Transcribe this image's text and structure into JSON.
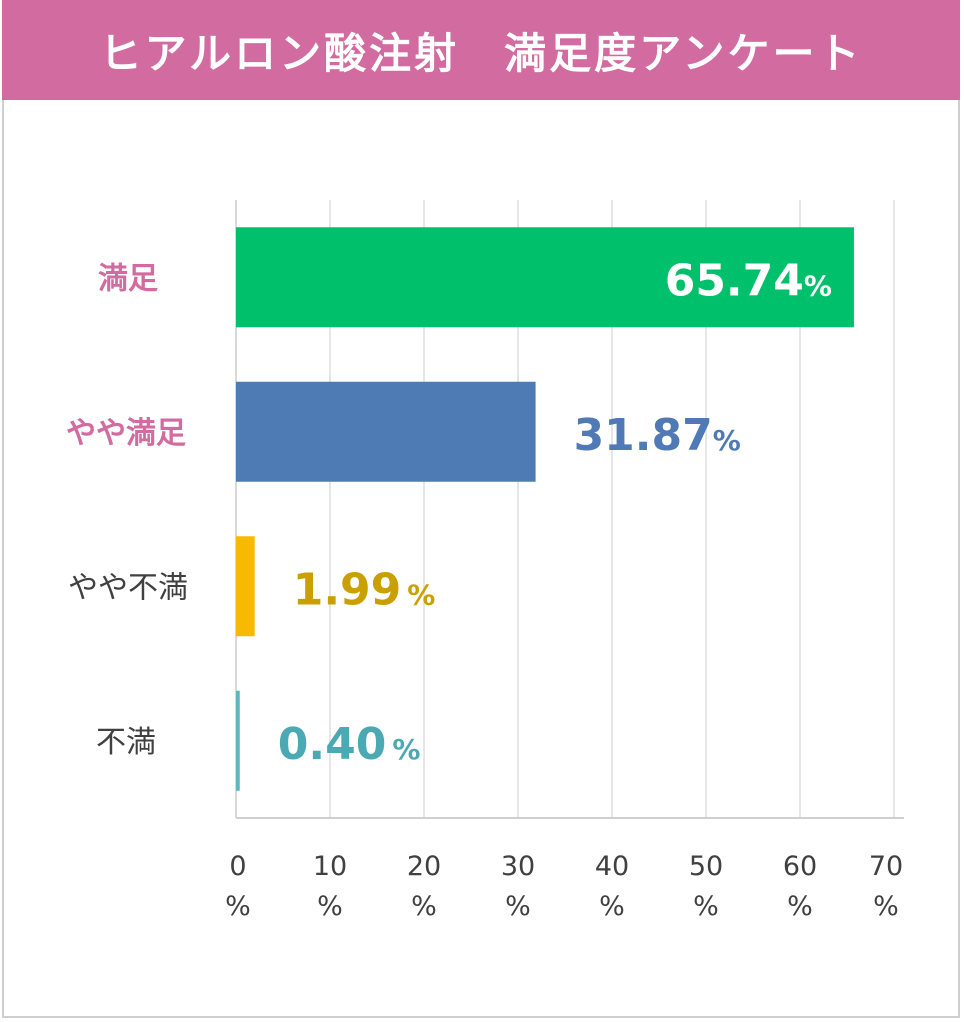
{
  "title": "ヒアルロン酸注射　満足度アンケート",
  "chart_data": {
    "type": "bar",
    "orientation": "horizontal",
    "title": "ヒアルロン酸注射　満足度アンケート",
    "categories": [
      "満足",
      "やや満足",
      "やや不満",
      "不満"
    ],
    "values": [
      65.74,
      31.87,
      1.99,
      0.4
    ],
    "data_labels": [
      "65.74",
      "31.87",
      "1.99",
      "0.40"
    ],
    "data_label_unit": "%",
    "bar_colors": [
      "#00C06B",
      "#4F7BB5",
      "#F8BA00",
      "#5FB5C0"
    ],
    "label_colors": [
      "#FFFFFF",
      "#4F7AB5",
      "#C9A000",
      "#4BA9B4"
    ],
    "category_colors": [
      "#D26BA0",
      "#D26BA0",
      "#404040",
      "#404040"
    ],
    "xlim": [
      0,
      70
    ],
    "xticks": [
      0,
      10,
      20,
      30,
      40,
      50,
      60,
      70
    ],
    "xtick_labels": [
      "0",
      "10",
      "20",
      "30",
      "40",
      "50",
      "60",
      "70"
    ],
    "xtick_unit": "%",
    "grid": true,
    "header_color": "#D26BA0"
  }
}
